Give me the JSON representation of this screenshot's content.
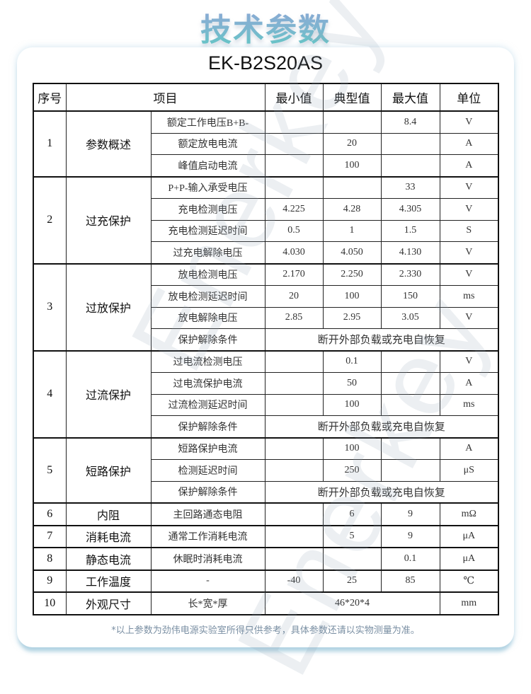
{
  "title": "技术参数",
  "model": "EK-B2S20AS",
  "watermark": "Enerkey",
  "headers": [
    "序号",
    "项目",
    "最小值",
    "典型值",
    "最大值",
    "单位"
  ],
  "groups": [
    {
      "index": "1",
      "name": "参数概述",
      "rows": [
        {
          "item": "额定工作电压B+B-",
          "min": "",
          "typ": "",
          "max": "8.4",
          "unit": "V"
        },
        {
          "item": "额定放电电流",
          "min": "",
          "typ": "20",
          "max": "",
          "unit": "A"
        },
        {
          "item": "峰值启动电流",
          "min": "",
          "typ": "100",
          "max": "",
          "unit": "A"
        }
      ]
    },
    {
      "index": "2",
      "name": "过充保护",
      "rows": [
        {
          "item": "P+P-输入承受电压",
          "min": "",
          "typ": "",
          "max": "33",
          "unit": "V"
        },
        {
          "item": "充电检测电压",
          "min": "4.225",
          "typ": "4.28",
          "max": "4.305",
          "unit": "V"
        },
        {
          "item": "充电检测延迟时间",
          "min": "0.5",
          "typ": "1",
          "max": "1.5",
          "unit": "S"
        },
        {
          "item": "过充电解除电压",
          "min": "4.030",
          "typ": "4.050",
          "max": "4.130",
          "unit": "V"
        }
      ]
    },
    {
      "index": "3",
      "name": "过放保护",
      "rows": [
        {
          "item": "放电检测电压",
          "min": "2.170",
          "typ": "2.250",
          "max": "2.330",
          "unit": "V"
        },
        {
          "item": "放电检测延迟时间",
          "min": "20",
          "typ": "100",
          "max": "150",
          "unit": "ms"
        },
        {
          "item": "放电解除电压",
          "min": "2.85",
          "typ": "2.95",
          "max": "3.05",
          "unit": "V"
        },
        {
          "item": "保护解除条件",
          "span4": "断开外部负载或充电自恢复"
        }
      ]
    },
    {
      "index": "4",
      "name": "过流保护",
      "rows": [
        {
          "item": "过电流检测电压",
          "min": "",
          "typ": "0.1",
          "max": "",
          "unit": "V"
        },
        {
          "item": "过电流保护电流",
          "min": "",
          "typ": "50",
          "max": "",
          "unit": "A"
        },
        {
          "item": "过流检测延迟时间",
          "min": "",
          "typ": "100",
          "max": "",
          "unit": "ms"
        },
        {
          "item": "保护解除条件",
          "span4": "断开外部负载或充电自恢复"
        }
      ]
    },
    {
      "index": "5",
      "name": "短路保护",
      "rows": [
        {
          "item": "短路保护电流",
          "min": "",
          "typ": "100",
          "max": "",
          "unit": "A"
        },
        {
          "item": "检测延迟时间",
          "min": "",
          "typ": "250",
          "max": "",
          "unit": "μS"
        },
        {
          "item": "保护解除条件",
          "span4": "断开外部负载或充电自恢复"
        }
      ]
    },
    {
      "index": "6",
      "name": "内阻",
      "rows": [
        {
          "item": "主回路通态电阻",
          "min": "",
          "typ": "6",
          "max": "9",
          "unit": "mΩ"
        }
      ]
    },
    {
      "index": "7",
      "name": "消耗电流",
      "rows": [
        {
          "item": "通常工作消耗电流",
          "min": "",
          "typ": "5",
          "max": "9",
          "unit": "μA"
        }
      ]
    },
    {
      "index": "8",
      "name": "静态电流",
      "rows": [
        {
          "item": "休眠时消耗电流",
          "min": "",
          "typ": "",
          "max": "0.1",
          "unit": "μA"
        }
      ]
    },
    {
      "index": "9",
      "name": "工作温度",
      "rows": [
        {
          "item": "-",
          "min": "-40",
          "typ": "25",
          "max": "85",
          "unit": "℃"
        }
      ]
    },
    {
      "index": "10",
      "name": "外观尺寸",
      "rows": [
        {
          "item": "长*宽*厚",
          "span3": "46*20*4",
          "unit": "mm"
        }
      ]
    }
  ],
  "footnote": "*以上参数为劲伟电源实验室所得只供参考，具体参数还请以实物测量为准。"
}
